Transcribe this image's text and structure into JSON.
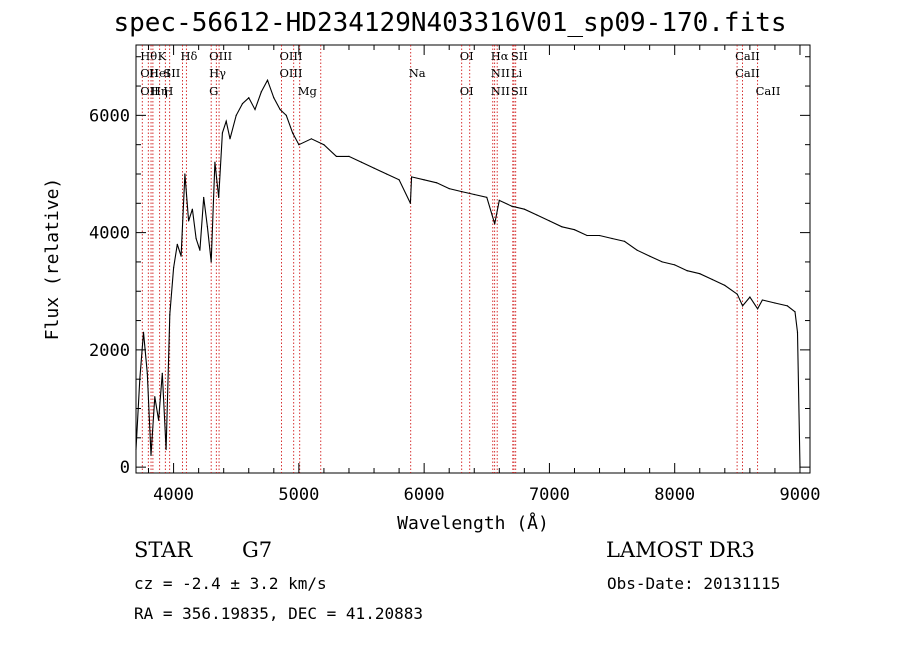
{
  "chart_data": {
    "type": "line",
    "title": "spec-56612-HD234129N403316V01_sp09-170.fits",
    "xlabel": "Wavelength (Å)",
    "ylabel": "Flux (relative)",
    "xlim": [
      3700,
      9080
    ],
    "ylim": [
      -100,
      7200
    ],
    "xticks": [
      4000,
      5000,
      6000,
      7000,
      8000,
      9000
    ],
    "yticks": [
      0,
      2000,
      4000,
      6000
    ],
    "line_color": "#000000",
    "marker_color": "#cc0000",
    "series": [
      {
        "x": [
          3700,
          3730,
          3760,
          3790,
          3820,
          3850,
          3880,
          3910,
          3940,
          3970,
          4000,
          4030,
          4060,
          4090,
          4120,
          4150,
          4180,
          4210,
          4240,
          4270,
          4300,
          4330,
          4360,
          4390,
          4420,
          4450,
          4500,
          4550,
          4600,
          4650,
          4700,
          4750,
          4800,
          4850,
          4900,
          4950,
          5000,
          5100,
          5200,
          5300,
          5400,
          5500,
          5600,
          5700,
          5800,
          5890,
          5900,
          6000,
          6100,
          6200,
          6300,
          6400,
          6500,
          6563,
          6600,
          6700,
          6800,
          6900,
          7000,
          7100,
          7200,
          7300,
          7400,
          7500,
          7600,
          7700,
          7800,
          7900,
          8000,
          8100,
          8200,
          8300,
          8400,
          8500,
          8542,
          8600,
          8662,
          8700,
          8800,
          8900,
          8960,
          8980,
          9000
        ],
        "y": [
          300,
          1500,
          2300,
          1600,
          200,
          1200,
          800,
          1600,
          300,
          2600,
          3400,
          3800,
          3600,
          5000,
          4200,
          4400,
          3900,
          3700,
          4600,
          4100,
          3500,
          5200,
          4600,
          5700,
          5900,
          5600,
          6000,
          6200,
          6300,
          6100,
          6400,
          6600,
          6300,
          6100,
          6000,
          5700,
          5500,
          5600,
          5500,
          5300,
          5300,
          5200,
          5100,
          5000,
          4900,
          4500,
          4950,
          4900,
          4850,
          4750,
          4700,
          4650,
          4600,
          4150,
          4550,
          4450,
          4400,
          4300,
          4200,
          4100,
          4050,
          3950,
          3950,
          3900,
          3850,
          3700,
          3600,
          3500,
          3450,
          3350,
          3300,
          3200,
          3100,
          2950,
          2750,
          2900,
          2700,
          2850,
          2800,
          2750,
          2650,
          2300,
          0
        ]
      }
    ],
    "lines": [
      {
        "x": 3750,
        "top": "Hθ",
        "mid": "OII",
        "low": "OII"
      },
      {
        "x": 3798,
        "top": "",
        "mid": "",
        "low": ""
      },
      {
        "x": 3820,
        "top": "",
        "mid": "HeI",
        "low": ""
      },
      {
        "x": 3835,
        "top": "",
        "mid": "",
        "low": "Hη"
      },
      {
        "x": 3889,
        "top": "K",
        "mid": "",
        "low": ""
      },
      {
        "x": 3934,
        "top": "",
        "mid": "SII",
        "low": "H"
      },
      {
        "x": 3969,
        "top": "",
        "mid": "",
        "low": ""
      },
      {
        "x": 4071,
        "top": "Hδ",
        "mid": "",
        "low": ""
      },
      {
        "x": 4102,
        "top": "",
        "mid": "",
        "low": ""
      },
      {
        "x": 4300,
        "top": "OIII",
        "mid": "Hγ",
        "low": "G"
      },
      {
        "x": 4341,
        "top": "",
        "mid": "",
        "low": ""
      },
      {
        "x": 4363,
        "top": "",
        "mid": "",
        "low": ""
      },
      {
        "x": 4861,
        "top": "OIII",
        "mid": "OIII",
        "low": ""
      },
      {
        "x": 4959,
        "top": "",
        "mid": "",
        "low": ""
      },
      {
        "x": 5007,
        "top": "",
        "mid": "",
        "low": "Mg"
      },
      {
        "x": 5175,
        "top": "",
        "mid": "",
        "low": ""
      },
      {
        "x": 5893,
        "top": "",
        "mid": "Na",
        "low": ""
      },
      {
        "x": 6300,
        "top": "OI",
        "mid": "",
        "low": "OI"
      },
      {
        "x": 6364,
        "top": "",
        "mid": "",
        "low": ""
      },
      {
        "x": 6548,
        "top": "Hα",
        "mid": "NII",
        "low": "NII"
      },
      {
        "x": 6563,
        "top": "",
        "mid": "",
        "low": ""
      },
      {
        "x": 6583,
        "top": "",
        "mid": "",
        "low": ""
      },
      {
        "x": 6708,
        "top": "SII",
        "mid": "Li",
        "low": "SII"
      },
      {
        "x": 6717,
        "top": "",
        "mid": "",
        "low": ""
      },
      {
        "x": 6731,
        "top": "",
        "mid": "",
        "low": ""
      },
      {
        "x": 8498,
        "top": "CaII",
        "mid": "CaII",
        "low": ""
      },
      {
        "x": 8542,
        "top": "",
        "mid": "",
        "low": ""
      },
      {
        "x": 8662,
        "top": "",
        "mid": "",
        "low": "CaII"
      }
    ]
  },
  "info": {
    "class_label": "STAR",
    "subclass": "G7",
    "survey": "LAMOST DR3",
    "cz": "cz = -2.4 ± 3.2 km/s",
    "obs_date": "Obs-Date: 20131115",
    "radec": "RA = 356.19835, DEC =  41.20883"
  }
}
